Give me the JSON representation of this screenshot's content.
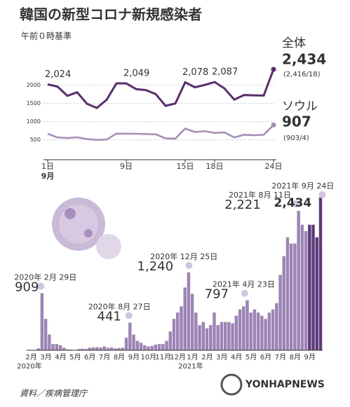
{
  "title": "韓国の新型コロナ新規感染者",
  "subtitle": "午前０時基準",
  "source": "資料／疾病管理庁",
  "logo": "YONHAPNEWS",
  "chart_data": [
    {
      "type": "line",
      "categories": [
        "1日",
        null,
        null,
        null,
        null,
        null,
        null,
        null,
        "9日",
        null,
        null,
        null,
        null,
        null,
        "15日",
        null,
        null,
        "18日",
        null,
        null,
        null,
        null,
        null,
        "24日"
      ],
      "month_label": "9月",
      "ylim": [
        300,
        2550
      ],
      "yticks": [
        500,
        1000,
        1500,
        2000
      ],
      "grid": true,
      "series": [
        {
          "name": "全体",
          "note": "(2,416/18)",
          "color": "#5a2d72",
          "values": [
            2024,
            1961,
            1709,
            1804,
            1490,
            1375,
            1597,
            2049,
            2049,
            1892,
            1865,
            1755,
            1433,
            1497,
            2078,
            1942,
            2008,
            2087,
            1910,
            1604,
            1729,
            1720,
            1716,
            2434
          ],
          "value_labels": [
            "2,024",
            null,
            null,
            null,
            null,
            null,
            null,
            null,
            "2,049",
            null,
            null,
            null,
            null,
            null,
            "2,078",
            null,
            null,
            "2,087",
            null,
            null,
            null,
            null,
            null,
            "2,434"
          ]
        },
        {
          "name": "ソウル",
          "note": "(903/4)",
          "color": "#a58bbb",
          "values": [
            667,
            566,
            551,
            569,
            521,
            498,
            506,
            671,
            667,
            667,
            657,
            652,
            541,
            532,
            808,
            714,
            737,
            690,
            704,
            566,
            640,
            624,
            638,
            907
          ],
          "value_labels": [
            null,
            null,
            null,
            null,
            null,
            null,
            null,
            null,
            null,
            null,
            null,
            null,
            null,
            null,
            null,
            null,
            null,
            null,
            null,
            null,
            null,
            null,
            null,
            "907"
          ]
        }
      ]
    },
    {
      "type": "bar",
      "color": "#9c84b4",
      "highlight_color": "#5e3a7a",
      "ylim": [
        0,
        2500
      ],
      "categories": [
        "2月",
        null,
        null,
        null,
        "3月",
        null,
        null,
        null,
        "4月",
        null,
        null,
        null,
        "5月",
        null,
        null,
        null,
        "6月",
        null,
        null,
        null,
        "7月",
        null,
        null,
        null,
        "8月",
        null,
        null,
        null,
        "9月",
        null,
        null,
        null,
        "10月",
        null,
        null,
        null,
        "11月",
        null,
        null,
        null,
        "12月",
        null,
        null,
        null,
        "1月",
        null,
        null,
        null,
        "2月",
        null,
        null,
        null,
        "3月",
        null,
        null,
        null,
        "4月",
        null,
        null,
        null,
        "5月",
        null,
        null,
        null,
        "6月",
        null,
        null,
        null,
        "7月",
        null,
        null,
        null,
        "8月",
        null,
        null,
        null,
        "9月",
        null,
        null,
        null
      ],
      "year_labels": [
        "2020年",
        null,
        null,
        null,
        null,
        null,
        null,
        null,
        null,
        null,
        null,
        null,
        null,
        null,
        null,
        null,
        null,
        null,
        null,
        null,
        null,
        null,
        null,
        null,
        null,
        null,
        null,
        null,
        null,
        null,
        null,
        null,
        null,
        null,
        null,
        null,
        null,
        null,
        null,
        null,
        null,
        null,
        null,
        null,
        "2021年",
        null,
        null,
        null,
        null,
        null,
        null,
        null,
        null,
        null,
        null,
        null,
        null,
        null,
        null,
        null,
        null,
        null,
        null,
        null,
        null,
        null,
        null,
        null,
        null,
        null,
        null,
        null,
        null,
        null,
        null,
        null,
        null,
        null,
        null,
        null
      ],
      "values": [
        1,
        2,
        30,
        909,
        500,
        250,
        100,
        100,
        80,
        40,
        15,
        10,
        5,
        20,
        25,
        20,
        40,
        45,
        50,
        45,
        60,
        40,
        45,
        30,
        35,
        40,
        200,
        441,
        250,
        150,
        120,
        80,
        60,
        70,
        90,
        100,
        100,
        150,
        300,
        500,
        600,
        700,
        1000,
        1240,
        900,
        600,
        400,
        450,
        350,
        400,
        600,
        400,
        450,
        450,
        450,
        430,
        550,
        650,
        700,
        797,
        600,
        650,
        600,
        550,
        500,
        600,
        650,
        750,
        1200,
        1500,
        1800,
        1700,
        1700,
        2221,
        2000,
        1900,
        2000,
        2000,
        1800,
        2434
      ],
      "annotations": [
        {
          "date": "2020年 2月 29日",
          "value": 909
        },
        {
          "date": "2020年 8月 27日",
          "value": 441
        },
        {
          "date": "2020年 12月 25日",
          "value": {
            "value": 1240,
            "label": "1,240"
          }
        },
        {
          "date": "2021年 4月 23日",
          "value": 797
        },
        {
          "date": "2021年 8月 11日",
          "value": {
            "value": 2221,
            "label": "2,221"
          }
        },
        {
          "date": "2021年 9月 24日",
          "value": {
            "value": 2434,
            "label": "2,434"
          }
        }
      ]
    }
  ]
}
